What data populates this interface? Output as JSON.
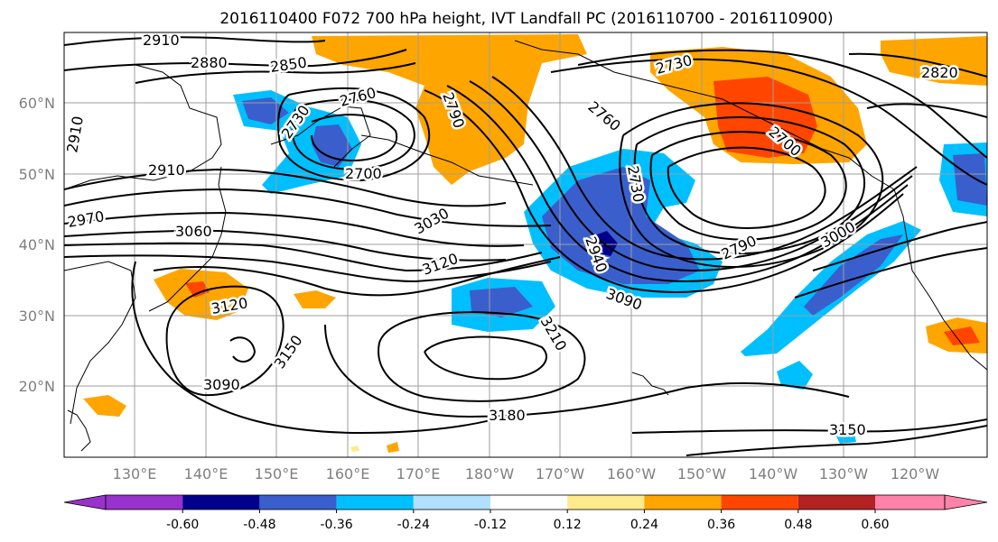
{
  "title": "2016110400 F072 700 hPa height, IVT Landfall PC (2016110700 - 2016110900)",
  "lat_labels": [
    "60°N",
    "50°N",
    "40°N",
    "30°N",
    "20°N"
  ],
  "lon_labels": [
    "130°E",
    "140°E",
    "150°E",
    "160°E",
    "170°E",
    "180°W",
    "170°W",
    "160°W",
    "150°W",
    "140°W",
    "130°W",
    "120°W"
  ],
  "contour_labels": [
    "2910",
    "2880",
    "2850",
    "2760",
    "2730",
    "2790",
    "2760",
    "2730",
    "2820",
    "2700",
    "2910",
    "2910",
    "2700",
    "2730",
    "2970",
    "3060",
    "3030",
    "3120",
    "2940",
    "3000",
    "2790",
    "3090",
    "3120",
    "3150",
    "3210",
    "3090",
    "3180",
    "3150"
  ],
  "colorbar": {
    "colors": [
      "#9932cc",
      "#00008b",
      "#3a5fcd",
      "#00bfff",
      "#b2dfff",
      "#ffffff",
      "#ffeb8c",
      "#ffa500",
      "#ff4500",
      "#b22222",
      "#ff82ab"
    ],
    "tick_labels": [
      "-0.60",
      "-0.48",
      "-0.36",
      "-0.24",
      "-0.12",
      "0.12",
      "0.24",
      "0.36",
      "0.48",
      "0.60"
    ]
  },
  "colors": {
    "contour": "#000000",
    "coast": "#000000",
    "grid": "#9e9e9e",
    "axis_label": "#7f7f7f",
    "neg_light": "#00bfff",
    "neg_mid": "#3a5fcd",
    "neg_dark": "#00008b",
    "pos_light": "#ffa500",
    "pos_mid": "#ff4500",
    "pos_pale": "#ffeb8c"
  }
}
